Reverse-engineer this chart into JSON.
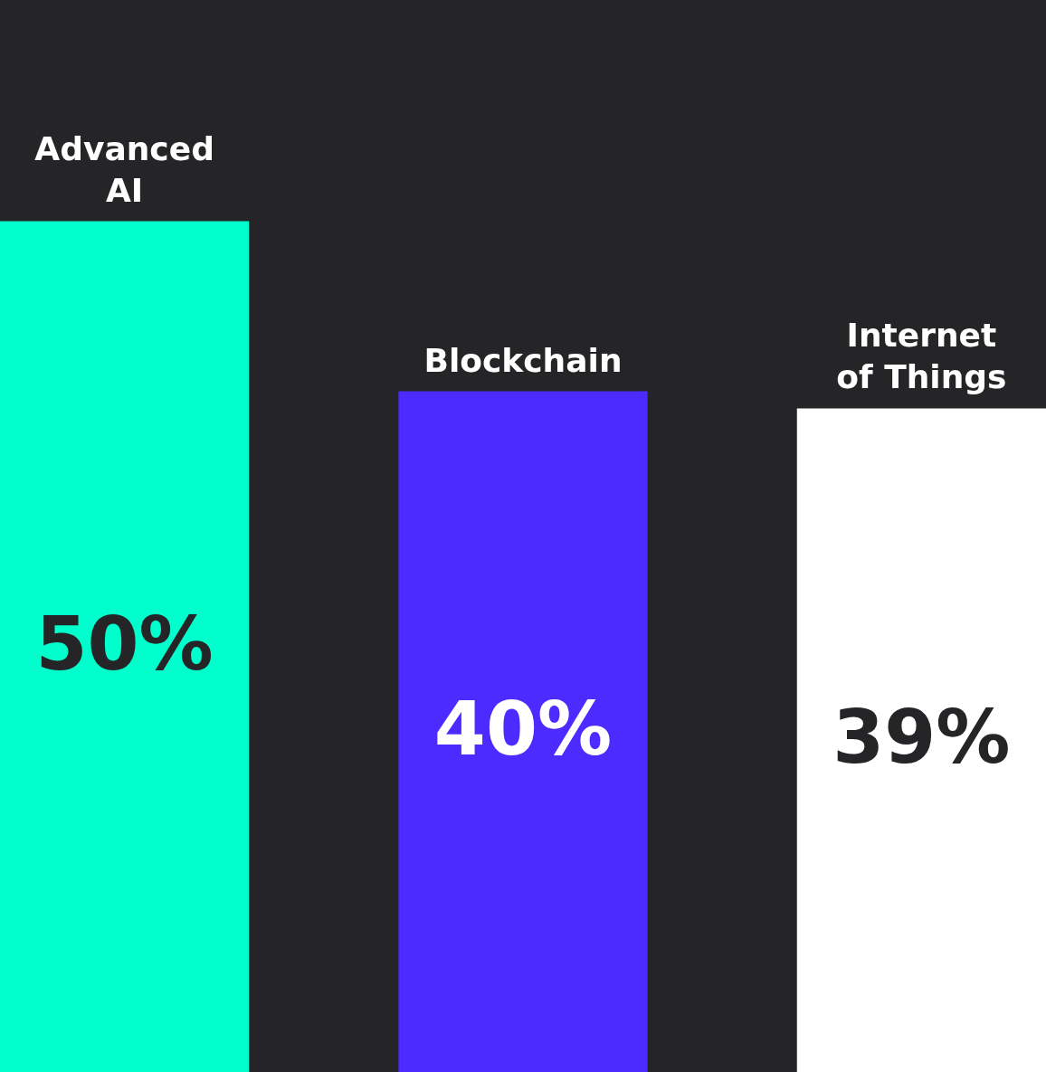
{
  "chart_data": {
    "type": "bar",
    "categories": [
      "Advanced AI",
      "Blockchain",
      "Internet of Things"
    ],
    "values": [
      50,
      40,
      39
    ],
    "colors": [
      "#00ffcc",
      "#4b2bff",
      "#ffffff"
    ],
    "value_labels": [
      "50%",
      "40%",
      "39%"
    ]
  }
}
